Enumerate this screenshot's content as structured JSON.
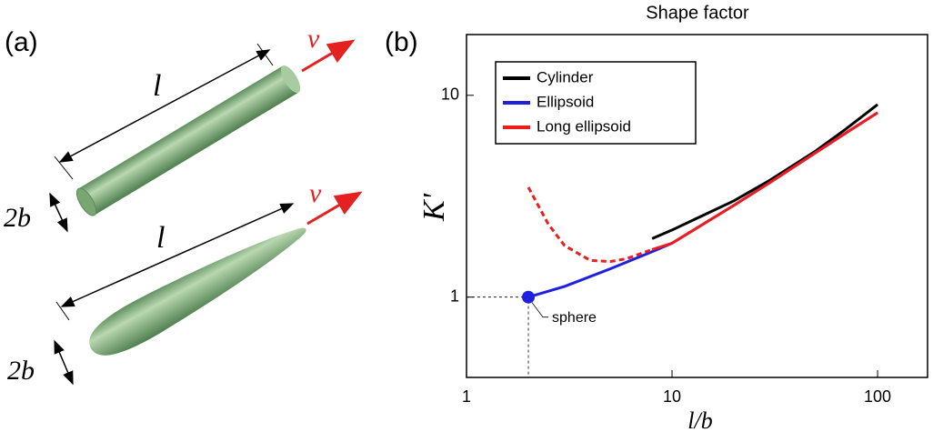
{
  "diagram": {
    "panel_label": "(a)",
    "labels": [
      "l",
      "v",
      "2b",
      "l",
      "v",
      "2b"
    ]
  },
  "chart_data": {
    "type": "line",
    "panel_label": "(b)",
    "title": "Shape factor",
    "x_label": "l/b",
    "y_label": "K'",
    "log_x": true,
    "log_y": true,
    "xlim": [
      1,
      175
    ],
    "ylim": [
      0.4,
      20
    ],
    "xticks": [
      1,
      10,
      100
    ],
    "yticks": [
      1,
      10
    ],
    "legend": "upper left",
    "series": [
      {
        "name": "Cylinder",
        "color": "#000000",
        "x": [
          8,
          10,
          20,
          30,
          50,
          70,
          100
        ],
        "values": [
          1.95,
          2.15,
          3.0,
          3.8,
          5.3,
          6.8,
          9.0
        ]
      },
      {
        "name": "Ellipsoid",
        "color": "#1f1fe0",
        "x": [
          2,
          3,
          5,
          8,
          10,
          20,
          30,
          50,
          70,
          100
        ],
        "values": [
          1.0,
          1.13,
          1.38,
          1.68,
          1.85,
          2.85,
          3.7,
          5.2,
          6.5,
          8.2
        ]
      },
      {
        "name": "Long ellipsoid",
        "color": "#ee1c1c",
        "dashed_below_x": 8,
        "x": [
          2,
          2.5,
          3,
          4,
          5,
          6,
          8,
          10,
          20,
          30,
          50,
          70,
          100
        ],
        "values": [
          3.5,
          2.3,
          1.8,
          1.52,
          1.5,
          1.55,
          1.72,
          1.85,
          2.85,
          3.7,
          5.2,
          6.5,
          8.2
        ]
      }
    ],
    "annotation": {
      "text": "sphere",
      "x": 2,
      "y": 1
    }
  }
}
